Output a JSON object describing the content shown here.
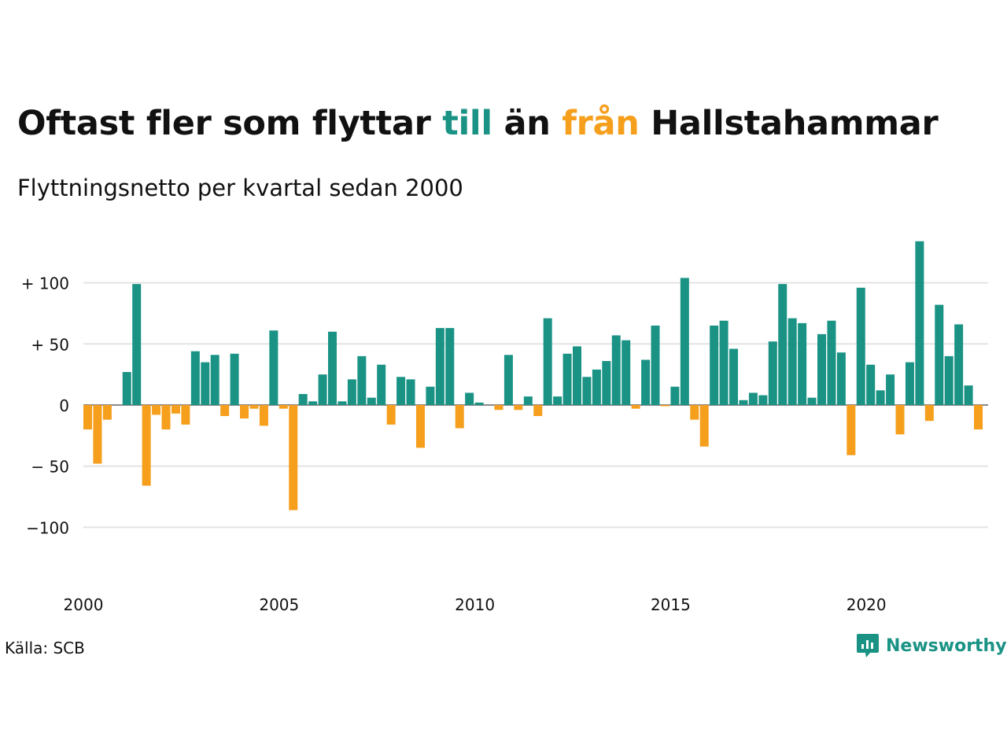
{
  "title": {
    "part1": "Oftast fler som flyttar ",
    "till": "till",
    "part2": " än ",
    "fran": "från",
    "part3": " Hallstahammar"
  },
  "subtitle": "Flyttningsnetto per kvartal sedan 2000",
  "source": "Källa: SCB",
  "brand": {
    "name": "Newsworthy",
    "icon": "newsworthy-logo-icon"
  },
  "colors": {
    "positive": "#1a9385",
    "negative": "#f59f1c",
    "grid": "#e3e3e3",
    "text": "#111111"
  },
  "chart_data": {
    "type": "bar",
    "title": "Oftast fler som flyttar till än från Hallstahammar",
    "subtitle": "Flyttningsnetto per kvartal sedan 2000",
    "xlabel": "",
    "ylabel": "",
    "x_start": 2000,
    "x_step": 0.25,
    "xticks": [
      2000,
      2005,
      2010,
      2015,
      2020
    ],
    "xtick_labels": [
      "2000",
      "2005",
      "2010",
      "2015",
      "2020"
    ],
    "ylim": [
      -130,
      135
    ],
    "yticks": [
      -100,
      -50,
      0,
      50,
      100
    ],
    "ytick_labels": [
      "−100",
      "− 50",
      "0",
      "+  50",
      "+ 100"
    ],
    "grid": true,
    "values": [
      -20,
      -48,
      -12,
      0,
      27,
      99,
      -66,
      -8,
      -20,
      -7,
      -16,
      44,
      35,
      41,
      -9,
      42,
      -11,
      -3,
      -17,
      61,
      -3,
      -86,
      9,
      3,
      25,
      60,
      3,
      21,
      40,
      6,
      33,
      -16,
      23,
      21,
      -35,
      15,
      63,
      63,
      -19,
      10,
      2,
      0,
      -4,
      41,
      -4,
      7,
      -9,
      71,
      7,
      42,
      48,
      23,
      29,
      36,
      57,
      53,
      -3,
      37,
      65,
      -1,
      15,
      104,
      -12,
      -34,
      65,
      69,
      46,
      4,
      10,
      8,
      52,
      99,
      71,
      67,
      6,
      58,
      69,
      43,
      -41,
      96,
      33,
      12,
      25,
      -24,
      35,
      134,
      -13,
      82,
      40,
      66,
      16,
      -20
    ]
  }
}
